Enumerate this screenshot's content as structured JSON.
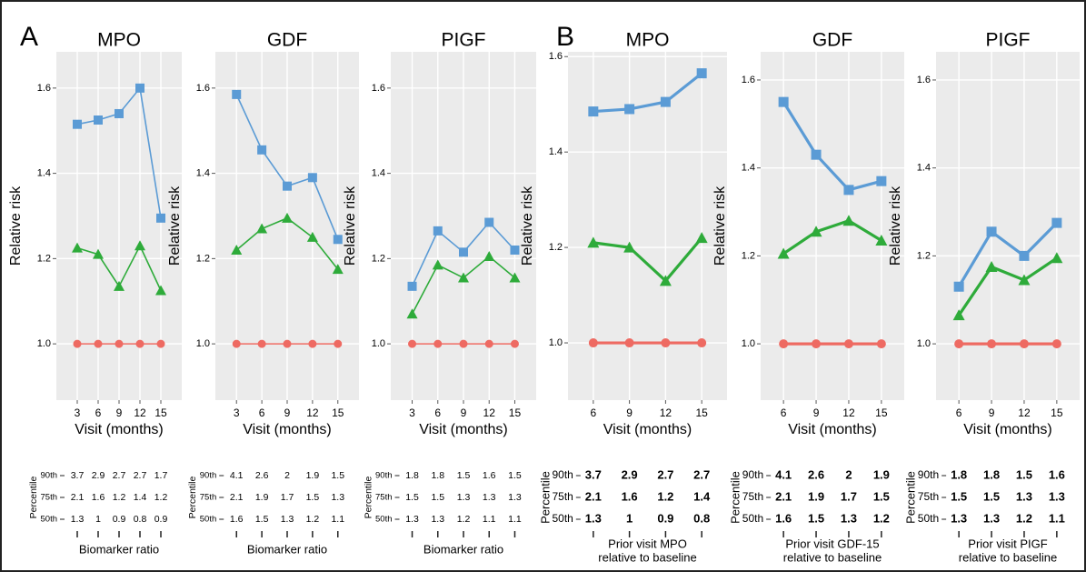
{
  "panel_labels": [
    "A",
    "B"
  ],
  "chart_data": [
    {
      "type": "line",
      "title": "MPO",
      "xlabel": "Visit (months)",
      "ylabel": "Relative risk",
      "x": [
        3,
        6,
        9,
        12,
        15
      ],
      "xlim": [
        0,
        18
      ],
      "ylim": [
        0.868,
        1.685
      ],
      "yticks": [
        {
          "value": 1,
          "label": "1.0"
        },
        1.2,
        1.4,
        1.6
      ],
      "grid": true,
      "series": [
        {
          "color": "#5b9bd5",
          "marker": "square",
          "values": [
            1.515,
            1.525,
            1.54,
            1.6,
            1.295
          ]
        },
        {
          "color": "#2eab3a",
          "marker": "triangle",
          "values": [
            1.225,
            1.21,
            1.135,
            1.23,
            1.125
          ]
        },
        {
          "color": "#ee6a62",
          "marker": "circle",
          "values": [
            1,
            1,
            1,
            1,
            1
          ]
        }
      ],
      "table": {
        "axis_label": "Percentile",
        "row_labels": [
          "90th",
          "75th",
          "50th"
        ],
        "rows": [
          [
            3.7,
            2.9,
            2.7,
            2.7,
            1.7
          ],
          [
            2.1,
            1.6,
            1.2,
            1.4,
            1.2
          ],
          [
            1.3,
            1,
            0.9,
            0.8,
            0.9
          ]
        ],
        "caption": [
          "Biomarker ratio"
        ]
      }
    },
    {
      "type": "line",
      "title": "GDF",
      "xlabel": "Visit (months)",
      "ylabel": "Relative risk",
      "x": [
        3,
        6,
        9,
        12,
        15
      ],
      "xlim": [
        0.5,
        17.5
      ],
      "ylim": [
        0.868,
        1.685
      ],
      "yticks": [
        {
          "value": 1,
          "label": "1.0"
        },
        1.2,
        1.4,
        1.6
      ],
      "grid": true,
      "series": [
        {
          "color": "#5b9bd5",
          "marker": "square",
          "values": [
            1.585,
            1.455,
            1.37,
            1.39,
            1.245
          ]
        },
        {
          "color": "#2eab3a",
          "marker": "triangle",
          "values": [
            1.22,
            1.27,
            1.295,
            1.25,
            1.175
          ]
        },
        {
          "color": "#ee6a62",
          "marker": "circle",
          "values": [
            1,
            1,
            1,
            1,
            1
          ]
        }
      ],
      "table": {
        "axis_label": "Percentile",
        "row_labels": [
          "90th",
          "75th",
          "50th"
        ],
        "rows": [
          [
            4.1,
            2.6,
            2,
            1.9,
            1.5
          ],
          [
            2.1,
            1.9,
            1.7,
            1.5,
            1.3
          ],
          [
            1.6,
            1.5,
            1.3,
            1.2,
            1.1
          ]
        ],
        "caption": [
          "Biomarker ratio"
        ]
      }
    },
    {
      "type": "line",
      "title": "PIGF",
      "xlabel": "Visit (months)",
      "ylabel": "Relative risk",
      "x": [
        3,
        6,
        9,
        12,
        15
      ],
      "xlim": [
        0.5,
        17.5
      ],
      "ylim": [
        0.868,
        1.685
      ],
      "yticks": [
        {
          "value": 1,
          "label": "1.0"
        },
        1.2,
        1.4,
        1.6
      ],
      "grid": true,
      "series": [
        {
          "color": "#5b9bd5",
          "marker": "square",
          "values": [
            1.135,
            1.265,
            1.215,
            1.285,
            1.22
          ]
        },
        {
          "color": "#2eab3a",
          "marker": "triangle",
          "values": [
            1.07,
            1.185,
            1.155,
            1.205,
            1.155
          ]
        },
        {
          "color": "#ee6a62",
          "marker": "circle",
          "values": [
            1,
            1,
            1,
            1,
            1
          ]
        }
      ],
      "table": {
        "axis_label": "Percentile",
        "row_labels": [
          "90th",
          "75th",
          "50th"
        ],
        "rows": [
          [
            1.8,
            1.8,
            1.5,
            1.6,
            1.5
          ],
          [
            1.5,
            1.5,
            1.3,
            1.3,
            1.3
          ],
          [
            1.3,
            1.3,
            1.2,
            1.1,
            1.1
          ]
        ],
        "caption": [
          "Biomarker ratio"
        ]
      }
    },
    {
      "type": "line",
      "title": "MPO",
      "xlabel": "Visit (months)",
      "ylabel": "Relative risk",
      "x": [
        6,
        9,
        12,
        15
      ],
      "xlim": [
        3.9,
        17.1
      ],
      "ylim": [
        0.88,
        1.61
      ],
      "yticks": [
        {
          "value": 1,
          "label": "1.0"
        },
        1.2,
        1.4,
        1.6
      ],
      "grid": true,
      "series": [
        {
          "color": "#5b9bd5",
          "marker": "square",
          "values": [
            1.485,
            1.49,
            1.505,
            1.565
          ]
        },
        {
          "color": "#2eab3a",
          "marker": "triangle",
          "values": [
            1.21,
            1.2,
            1.13,
            1.22
          ]
        },
        {
          "color": "#ee6a62",
          "marker": "circle",
          "values": [
            1,
            1,
            1,
            1
          ]
        }
      ],
      "table": {
        "axis_label": "Percentile",
        "row_labels": [
          "90th",
          "75th",
          "50th"
        ],
        "rows": [
          [
            3.7,
            2.9,
            2.7,
            2.7
          ],
          [
            2.1,
            1.6,
            1.2,
            1.4
          ],
          [
            1.3,
            1,
            0.9,
            0.8
          ]
        ],
        "caption": [
          "Prior visit MPO",
          "relative to baseline"
        ]
      }
    },
    {
      "type": "line",
      "title": "GDF",
      "xlabel": "Visit (months)",
      "ylabel": "Relative risk",
      "x": [
        6,
        9,
        12,
        15
      ],
      "xlim": [
        3.9,
        17.1
      ],
      "ylim": [
        0.872,
        1.664
      ],
      "yticks": [
        {
          "value": 1,
          "label": "1.0"
        },
        1.2,
        1.4,
        1.6
      ],
      "grid": true,
      "series": [
        {
          "color": "#5b9bd5",
          "marker": "square",
          "values": [
            1.55,
            1.43,
            1.35,
            1.37
          ]
        },
        {
          "color": "#2eab3a",
          "marker": "triangle",
          "values": [
            1.205,
            1.255,
            1.28,
            1.235
          ]
        },
        {
          "color": "#ee6a62",
          "marker": "circle",
          "values": [
            1,
            1,
            1,
            1
          ]
        }
      ],
      "table": {
        "axis_label": "Percentile",
        "row_labels": [
          "90th",
          "75th",
          "50th"
        ],
        "rows": [
          [
            4.1,
            2.6,
            2,
            1.9
          ],
          [
            2.1,
            1.9,
            1.7,
            1.5
          ],
          [
            1.6,
            1.5,
            1.3,
            1.2
          ]
        ],
        "caption": [
          "Prior visit GDF-15",
          "relative to baseline"
        ]
      }
    },
    {
      "type": "line",
      "title": "PIGF",
      "xlabel": "Visit (months)",
      "ylabel": "Relative risk",
      "x": [
        6,
        9,
        12,
        15
      ],
      "xlim": [
        3.9,
        17.1
      ],
      "ylim": [
        0.872,
        1.664
      ],
      "yticks": [
        {
          "value": 1,
          "label": "1.0"
        },
        1.2,
        1.4,
        1.6
      ],
      "grid": true,
      "series": [
        {
          "color": "#5b9bd5",
          "marker": "square",
          "values": [
            1.13,
            1.255,
            1.2,
            1.275
          ]
        },
        {
          "color": "#2eab3a",
          "marker": "triangle",
          "values": [
            1.065,
            1.175,
            1.145,
            1.195
          ]
        },
        {
          "color": "#ee6a62",
          "marker": "circle",
          "values": [
            1,
            1,
            1,
            1
          ]
        }
      ],
      "table": {
        "axis_label": "Percentile",
        "row_labels": [
          "90th",
          "75th",
          "50th"
        ],
        "rows": [
          [
            1.8,
            1.8,
            1.5,
            1.6
          ],
          [
            1.5,
            1.5,
            1.3,
            1.3
          ],
          [
            1.3,
            1.3,
            1.2,
            1.1
          ]
        ],
        "caption": [
          "Prior visit PIGF",
          "relative to baseline"
        ]
      }
    }
  ]
}
